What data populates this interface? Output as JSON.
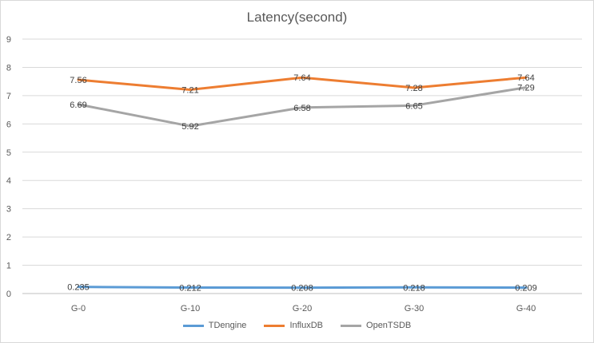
{
  "chart_data": {
    "type": "line",
    "title": "Latency(second)",
    "xlabel": "",
    "ylabel": "",
    "categories": [
      "G-0",
      "G-10",
      "G-20",
      "G-30",
      "G-40"
    ],
    "ylim": [
      0,
      9
    ],
    "yticks": [
      "0",
      "1",
      "2",
      "3",
      "4",
      "5",
      "6",
      "7",
      "8",
      "9"
    ],
    "grid": true,
    "legend_position": "bottom",
    "series": [
      {
        "name": "TDengine",
        "color": "#5b9bd5",
        "values": [
          0.235,
          0.212,
          0.208,
          0.218,
          0.209
        ],
        "labels": [
          "0.235",
          "0.212",
          "0.208",
          "0.218",
          "0.209"
        ]
      },
      {
        "name": "InfluxDB",
        "color": "#ed7d31",
        "values": [
          7.56,
          7.21,
          7.64,
          7.28,
          7.64
        ],
        "labels": [
          "7.56",
          "7.21",
          "7.64",
          "7.28",
          "7.64"
        ]
      },
      {
        "name": "OpenTSDB",
        "color": "#a5a5a5",
        "values": [
          6.69,
          5.92,
          6.58,
          6.65,
          7.29
        ],
        "labels": [
          "6.69",
          "5.92",
          "6.58",
          "6.65",
          "7.29"
        ]
      }
    ]
  }
}
